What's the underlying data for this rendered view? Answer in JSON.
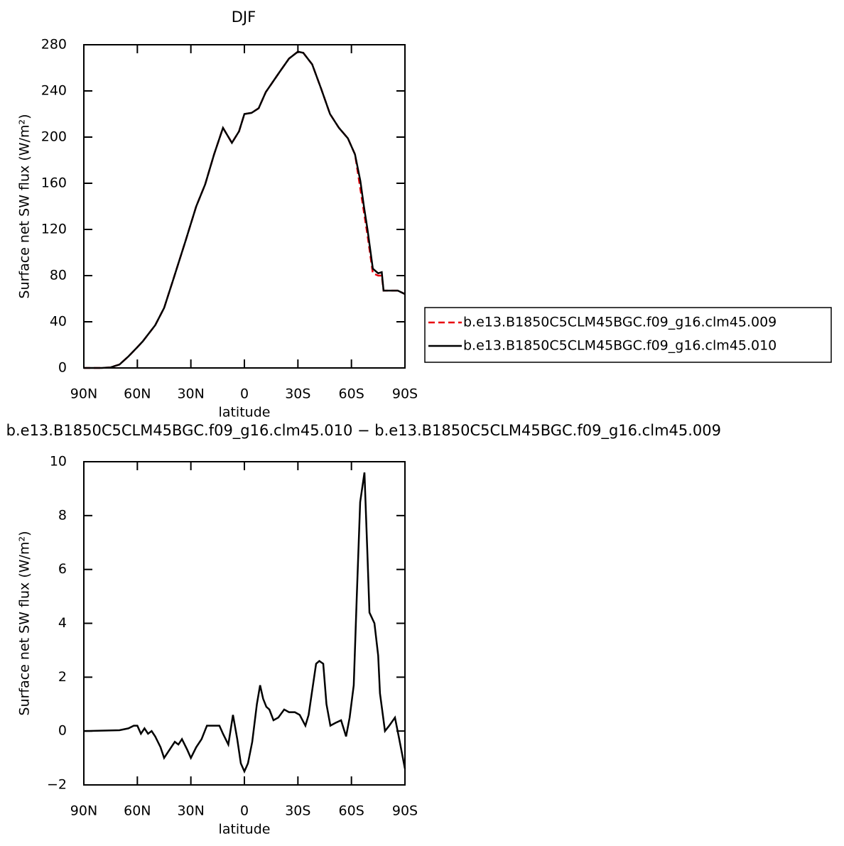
{
  "chart_data": [
    {
      "type": "line",
      "title": "DJF",
      "xlabel": "latitude",
      "ylabel": "Surface net SW flux (W/m²)",
      "xlim": [
        90,
        -90
      ],
      "ylim": [
        0,
        280
      ],
      "xticks": [
        {
          "value": 90,
          "label": "90N"
        },
        {
          "value": 60,
          "label": "60N"
        },
        {
          "value": 30,
          "label": "30N"
        },
        0,
        {
          "value": -30,
          "label": "30S"
        },
        {
          "value": -60,
          "label": "60S"
        },
        {
          "value": -90,
          "label": "90S"
        }
      ],
      "yticks": [
        0,
        40,
        80,
        120,
        160,
        200,
        240,
        280
      ],
      "legend": "right",
      "x": [
        90,
        80,
        75,
        70,
        65,
        60,
        57,
        50,
        45,
        40,
        33,
        27,
        22,
        17,
        12,
        7,
        3,
        0,
        -4,
        -8,
        -12,
        -20,
        -25,
        -30,
        -33,
        -38,
        -43,
        -48,
        -53,
        -58,
        -62,
        -65,
        -67,
        -69,
        -72,
        -75,
        -77,
        -78,
        -82,
        -86,
        -90
      ],
      "series": [
        {
          "name": "b.e13.B1850C5CLM45BGC.f09_g16.clm45.009",
          "color": "#e8000b",
          "dash": "dashed",
          "values": [
            0,
            0,
            0.5,
            3,
            10,
            18,
            23,
            37,
            52,
            76,
            110,
            140,
            159,
            185,
            208,
            195,
            205,
            220,
            221,
            225,
            239,
            257,
            268,
            274,
            273,
            263,
            242,
            220,
            208,
            199,
            185,
            155,
            135,
            115,
            82,
            80,
            80,
            67,
            67,
            67,
            64
          ]
        },
        {
          "name": "b.e13.B1850C5CLM45BGC.f09_g16.clm45.010",
          "color": "#000000",
          "dash": "solid",
          "values": [
            0,
            0,
            0.5,
            3,
            10,
            18,
            23,
            37,
            52,
            76,
            110,
            140,
            159,
            185,
            208,
            195,
            205,
            220,
            221,
            225,
            239,
            257,
            268,
            274,
            273,
            263,
            242,
            220,
            208,
            199,
            185,
            162,
            140,
            120,
            86,
            82,
            83,
            67,
            67,
            67,
            64
          ]
        }
      ]
    },
    {
      "type": "line",
      "title": "b.e13.B1850C5CLM45BGC.f09_g16.clm45.010 − b.e13.B1850C5CLM45BGC.f09_g16.clm45.009",
      "xlabel": "latitude",
      "ylabel": "Surface net SW flux (W/m²)",
      "xlim": [
        90,
        -90
      ],
      "ylim": [
        -2,
        10
      ],
      "xticks": [
        {
          "value": 90,
          "label": "90N"
        },
        {
          "value": 60,
          "label": "60N"
        },
        {
          "value": 30,
          "label": "30N"
        },
        0,
        {
          "value": -30,
          "label": "30S"
        },
        {
          "value": -60,
          "label": "60S"
        },
        {
          "value": -90,
          "label": "90S"
        }
      ],
      "yticks": [
        {
          "value": -2,
          "label": "−2"
        },
        0,
        2,
        4,
        6,
        8,
        10
      ],
      "x": [
        90,
        70,
        65,
        62,
        60,
        58,
        56,
        54,
        52,
        50,
        47,
        45,
        42,
        39,
        37,
        35,
        32,
        30,
        27,
        24,
        21,
        17,
        14,
        12,
        9,
        6.4,
        4,
        2,
        0,
        -2,
        -4.4,
        -7,
        -8.8,
        -10.5,
        -12.3,
        -14,
        -16.3,
        -19,
        -22.3,
        -25,
        -28.3,
        -31,
        -34.2,
        -36,
        -40.2,
        -42,
        -44.2,
        -46,
        -48.2,
        -51,
        -54.2,
        -57,
        -59,
        -61.3,
        -63,
        -64.9,
        -67.3,
        -69,
        -70.1,
        -72.9,
        -75,
        -76,
        -78.8,
        -81.2,
        -84.4,
        -86.8,
        -90
      ],
      "series": [
        {
          "color": "#000000",
          "dash": "solid",
          "values": [
            0,
            0.03,
            0.1,
            0.2,
            0.2,
            -0.1,
            0.1,
            -0.1,
            0,
            -0.2,
            -0.6,
            -1.0,
            -0.7,
            -0.4,
            -0.5,
            -0.3,
            -0.7,
            -1.0,
            -0.6,
            -0.3,
            0.2,
            0.2,
            0.2,
            -0.1,
            -0.5,
            0.6,
            -0.3,
            -1.2,
            -1.5,
            -1.2,
            -0.4,
            1.0,
            1.7,
            1.2,
            0.9,
            0.8,
            0.4,
            0.5,
            0.8,
            0.7,
            0.7,
            0.6,
            0.2,
            0.6,
            2.5,
            2.6,
            2.5,
            1.0,
            0.2,
            0.3,
            0.4,
            -0.2,
            0.5,
            1.7,
            5.0,
            8.5,
            9.6,
            6.5,
            4.4,
            4.0,
            2.8,
            1.4,
            0,
            0.2,
            0.5,
            -0.3,
            -1.4
          ]
        }
      ]
    }
  ]
}
